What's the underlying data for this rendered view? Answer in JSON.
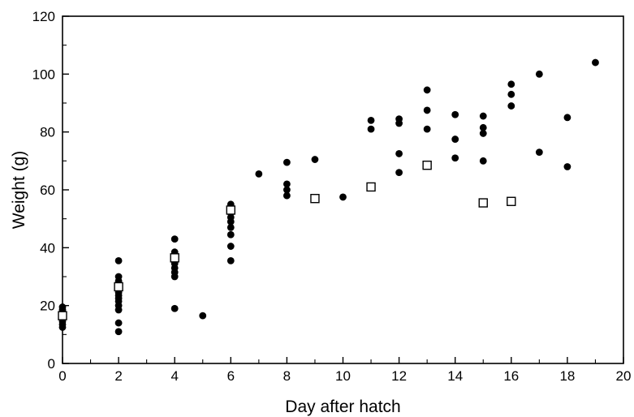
{
  "chart_data": {
    "type": "scatter",
    "title": "",
    "xlabel": "Day after hatch",
    "ylabel": "Weight (g)",
    "xlim": [
      0,
      20
    ],
    "ylim": [
      0,
      120
    ],
    "x_ticks": [
      "0",
      "2",
      "4",
      "6",
      "8",
      "10",
      "12",
      "14",
      "16",
      "18",
      "20"
    ],
    "y_ticks": [
      "0",
      "20",
      "40",
      "60",
      "80",
      "100",
      "120"
    ],
    "grid": false,
    "series": [
      {
        "marker": "filled-circle",
        "color": "#000000",
        "points": [
          [
            0,
            12.5
          ],
          [
            0,
            13.5
          ],
          [
            0,
            14.5
          ],
          [
            0,
            15.5
          ],
          [
            0,
            16.5
          ],
          [
            0,
            17.5
          ],
          [
            0,
            18.5
          ],
          [
            0,
            19.5
          ],
          [
            2,
            11
          ],
          [
            2,
            14
          ],
          [
            2,
            18.5
          ],
          [
            2,
            20
          ],
          [
            2,
            21.5
          ],
          [
            2,
            22.5
          ],
          [
            2,
            23.5
          ],
          [
            2,
            24.5
          ],
          [
            2,
            25.5
          ],
          [
            2,
            27
          ],
          [
            2,
            28.5
          ],
          [
            2,
            30
          ],
          [
            2,
            35.5
          ],
          [
            4,
            19
          ],
          [
            4,
            30
          ],
          [
            4,
            31.5
          ],
          [
            4,
            33
          ],
          [
            4,
            34.5
          ],
          [
            4,
            37
          ],
          [
            4,
            38.5
          ],
          [
            4,
            43
          ],
          [
            5,
            16.5
          ],
          [
            6,
            35.5
          ],
          [
            6,
            40.5
          ],
          [
            6,
            44.5
          ],
          [
            6,
            47
          ],
          [
            6,
            49
          ],
          [
            6,
            50.5
          ],
          [
            6,
            52
          ],
          [
            6,
            53.5
          ],
          [
            6,
            55
          ],
          [
            7,
            65.5
          ],
          [
            8,
            58
          ],
          [
            8,
            60
          ],
          [
            8,
            62
          ],
          [
            8,
            69.5
          ],
          [
            9,
            70.5
          ],
          [
            10,
            57.5
          ],
          [
            11,
            81
          ],
          [
            11,
            84
          ],
          [
            12,
            66
          ],
          [
            12,
            72.5
          ],
          [
            12,
            83
          ],
          [
            12,
            84.5
          ],
          [
            13,
            81
          ],
          [
            13,
            87.5
          ],
          [
            13,
            94.5
          ],
          [
            14,
            71
          ],
          [
            14,
            77.5
          ],
          [
            14,
            86
          ],
          [
            15,
            70
          ],
          [
            15,
            79.5
          ],
          [
            15,
            81.5
          ],
          [
            15,
            85.5
          ],
          [
            16,
            89
          ],
          [
            16,
            93
          ],
          [
            16,
            96.5
          ],
          [
            17,
            73
          ],
          [
            17,
            100
          ],
          [
            18,
            68
          ],
          [
            18,
            85
          ],
          [
            19,
            104
          ]
        ]
      },
      {
        "marker": "open-square",
        "color": "#000000",
        "points": [
          [
            0,
            16.5
          ],
          [
            2,
            26.5
          ],
          [
            4,
            36.5
          ],
          [
            6,
            53
          ],
          [
            9,
            57
          ],
          [
            11,
            61
          ],
          [
            13,
            68.5
          ],
          [
            15,
            55.5
          ],
          [
            16,
            56
          ]
        ]
      }
    ]
  }
}
